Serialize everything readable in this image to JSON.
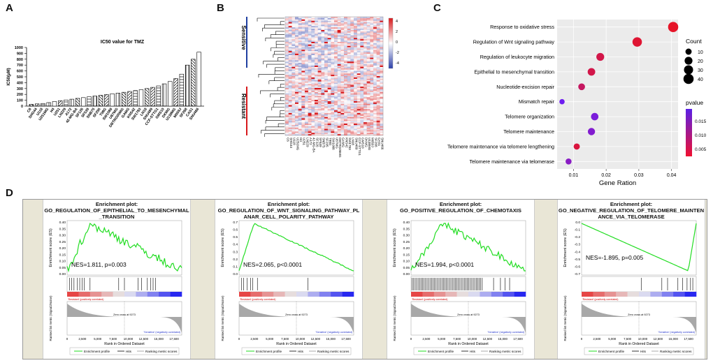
{
  "panels": {
    "a": "A",
    "b": "B",
    "c": "C",
    "d": "D"
  },
  "ic50": {
    "chart_data": {
      "type": "bar",
      "title": "IC50 value for TMZ",
      "ylabel": "IC50(μM)",
      "ylim": [
        0,
        1000
      ],
      "yticks": [
        "0",
        "100",
        "200",
        "300",
        "400",
        "500",
        "600",
        "700",
        "800",
        "900",
        "1000"
      ],
      "categories": [
        "C6",
        "SHG44",
        "U118",
        "U251MG",
        "H4",
        "U251",
        "LN229",
        "A172",
        "42-MG-BA",
        "SF126",
        "SF539",
        "SNB75",
        "SF295",
        "T98G",
        "SW1088",
        "U87MG",
        "DBTRG05MG",
        "GAMG",
        "KNS42",
        "SW1783",
        "LN18",
        "SNU489",
        "CCF-STTG1",
        "GMS10",
        "DKMG",
        "U138MG",
        "M059J",
        "SF268",
        "CAS1",
        "SNU466"
      ],
      "values": [
        32,
        38,
        45,
        60,
        78,
        92,
        105,
        118,
        132,
        145,
        160,
        172,
        185,
        198,
        210,
        222,
        236,
        250,
        265,
        280,
        300,
        320,
        345,
        380,
        420,
        470,
        545,
        700,
        800,
        920
      ]
    }
  },
  "heatmap": {
    "sensitive_label": "Sensitive",
    "resistant_label": "Resistant",
    "scale_ticks": [
      "4",
      "2",
      "0",
      "-2",
      "-4"
    ],
    "colors": {
      "high": "#d7191c",
      "mid": "#ffffff",
      "low": "#2c3fa8",
      "sensitive_bar": "#1f3fa0",
      "resistant_bar": "#d7191c"
    },
    "columns": [
      "C6",
      "SHG44",
      "U118",
      "U251MG",
      "H4",
      "U251",
      "LN229",
      "A172",
      "42-MG-BA",
      "SF126",
      "SF539",
      "SNB75",
      "SF295",
      "T98G",
      "SW1088",
      "U87MG",
      "DBTRG05MG",
      "GAMG",
      "KNS42",
      "SW1783",
      "LN18",
      "SNU489",
      "CCF-STTG1",
      "GMS10",
      "DKMG",
      "U138MG",
      "M059J",
      "SF268",
      "CAS1",
      "SNU466"
    ]
  },
  "dotplot": {
    "chart_data": {
      "type": "scatter",
      "xlabel": "Gene Ration",
      "xlim": [
        0.005,
        0.042
      ],
      "xticks": [
        0.01,
        0.02,
        0.03,
        0.04
      ],
      "xtick_labels": [
        "0.01",
        "0.02",
        "0.03",
        "0.04"
      ],
      "terms": [
        "Response to oxidative stress",
        "Regulation of Wnt signaling pathway",
        "Regulation of leukocyte migration",
        "Epithelial to mesenchymal transition",
        "Nucleotide-excision repair",
        "Mismatch repair",
        "Telomere organization",
        "Telomere maintenance",
        "Telomere maintenance via telomere lengthening",
        "Telomere maintenance via telomerase"
      ],
      "gene_ratio": [
        0.0405,
        0.0295,
        0.0182,
        0.0155,
        0.0125,
        0.0065,
        0.0165,
        0.0155,
        0.011,
        0.0085
      ],
      "count": [
        40,
        33,
        20,
        18,
        13,
        6,
        17,
        16,
        10,
        9
      ],
      "pvalue": [
        0.001,
        0.002,
        0.004,
        0.004,
        0.006,
        0.019,
        0.017,
        0.016,
        0.003,
        0.015
      ],
      "count_legend_title": "Count",
      "count_legend": [
        "10",
        "20",
        "30",
        "40"
      ],
      "pvalue_legend_title": "pvalue",
      "pvalue_legend": [
        "0.015",
        "0.010",
        "0.005"
      ]
    }
  },
  "gsea": {
    "ylabel_es": "Enrichment score (ES)",
    "ylabel_rank": "Ranked list metric (Signal2Noise)",
    "xlabel": "Rank in Ordered Dataset",
    "zero_cross": "Zero cross at 9273",
    "pos_label": "'Resistant' (positively correlated)",
    "neg_label": "'Sensitive' (negatively correlated)",
    "xticks": [
      "0",
      "2,500",
      "5,000",
      "7,500",
      "10,000",
      "12,500",
      "15,000",
      "17,500"
    ],
    "legend": [
      "Enrichment profile",
      "Hits",
      "Ranking metric scores"
    ],
    "plots": [
      {
        "title": "Enrichment plot:\nGO_REGULATION_OF_EPITHELIAL_TO_MESENCHYMAL\n_TRANSITION",
        "nes": "NES=1.811, p=0.003",
        "yticks": [
          "0.40",
          "0.35",
          "0.30",
          "0.25",
          "0.20",
          "0.15",
          "0.10",
          "0.05",
          "0.00"
        ]
      },
      {
        "title": "Enrichment plot:\nGO_REGULATION_OF_WNT_SIGNALING_PATHWAY_PL\nANAR_CELL_POLARITY_PATHWAY",
        "nes": "NES=2.065, p<0.0001",
        "yticks": [
          "0.7",
          "0.6",
          "0.5",
          "0.4",
          "0.3",
          "0.2",
          "0.1",
          "0.0"
        ]
      },
      {
        "title": "Enrichment plot:\nGO_POSITIVE_REGULATION_OF_CHEMOTAXIS",
        "nes": "NES=1.994, p<0.0001",
        "yticks": [
          "0.40",
          "0.35",
          "0.30",
          "0.25",
          "0.20",
          "0.15",
          "0.10",
          "0.05",
          "0.00"
        ]
      },
      {
        "title": "Enrichment plot:\nGO_NEGATIVE_REGULATION_OF_TELOMERE_MAINTEN\nANCE_VIA_TELOMERASE",
        "nes": "NES=-1.895, p=0.005",
        "yticks": [
          "0.0",
          "-0.1",
          "-0.2",
          "-0.3",
          "-0.4",
          "-0.5",
          "-0.6",
          "-0.7"
        ]
      }
    ]
  }
}
